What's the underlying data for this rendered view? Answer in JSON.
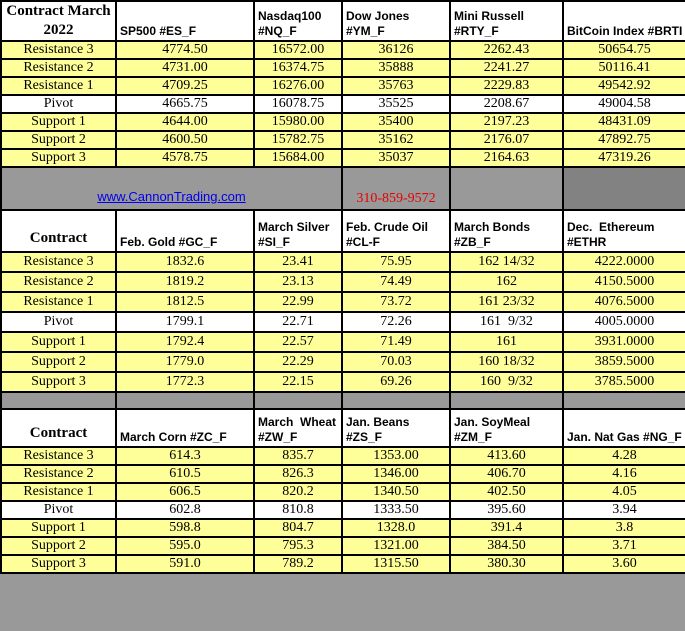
{
  "colors": {
    "cell_yellow": "#ffff99",
    "pivot_white": "#ffffff",
    "band_gray": "#999999",
    "band_gray_dark": "#828282",
    "border_black": "#000000",
    "link_blue": "#0000ee",
    "phone_red": "#e60000"
  },
  "band": {
    "link_text": "www.CannonTrading.com",
    "phone_text": "310-859-9572"
  },
  "row_labels": [
    "Resistance 3",
    "Resistance 2",
    "Resistance 1",
    "Pivot",
    "Support 1",
    "Support 2",
    "Support 3"
  ],
  "sections": [
    {
      "corner_label": "Contract March 2022",
      "columns": [
        {
          "header": "SP500 #ES_F",
          "values": [
            "4774.50",
            "4731.00",
            "4709.25",
            "4665.75",
            "4644.00",
            "4600.50",
            "4578.75"
          ]
        },
        {
          "header": "Nasdaq100\n#NQ_F",
          "values": [
            "16572.00",
            "16374.75",
            "16276.00",
            "16078.75",
            "15980.00",
            "15782.75",
            "15684.00"
          ]
        },
        {
          "header": "Dow Jones\n#YM_F",
          "values": [
            "36126",
            "35888",
            "35763",
            "35525",
            "35400",
            "35162",
            "35037"
          ]
        },
        {
          "header": "Mini Russell\n#RTY_F",
          "values": [
            "2262.43",
            "2241.27",
            "2229.83",
            "2208.67",
            "2197.23",
            "2176.07",
            "2164.63"
          ]
        },
        {
          "header": "BitCoin Index #BRTI",
          "values": [
            "50654.75",
            "50116.41",
            "49542.92",
            "49004.58",
            "48431.09",
            "47892.75",
            "47319.26"
          ]
        }
      ]
    },
    {
      "corner_label": "Contract",
      "columns": [
        {
          "header": "Feb. Gold #GC_F",
          "values": [
            "1832.6",
            "1819.2",
            "1812.5",
            "1799.1",
            "1792.4",
            "1779.0",
            "1772.3"
          ]
        },
        {
          "header": "March Silver\n#SI_F",
          "values": [
            "23.41",
            "23.13",
            "22.99",
            "22.71",
            "22.57",
            "22.29",
            "22.15"
          ]
        },
        {
          "header": "Feb. Crude Oil\n#CL-F",
          "values": [
            "75.95",
            "74.49",
            "73.72",
            "72.26",
            "71.49",
            "70.03",
            "69.26"
          ]
        },
        {
          "header": "March Bonds\n#ZB_F",
          "values": [
            "162 14/32",
            "162",
            "161 23/32",
            "161  9/32",
            "161",
            "160 18/32",
            "160  9/32"
          ]
        },
        {
          "header": "Dec.  Ethereum\n#ETHR",
          "values": [
            "4222.0000",
            "4150.5000",
            "4076.5000",
            "4005.0000",
            "3931.0000",
            "3859.5000",
            "3785.5000"
          ]
        }
      ]
    },
    {
      "corner_label": "Contract",
      "columns": [
        {
          "header": "March Corn #ZC_F",
          "values": [
            "614.3",
            "610.5",
            "606.5",
            "602.8",
            "598.8",
            "595.0",
            "591.0"
          ]
        },
        {
          "header": "March  Wheat\n#ZW_F",
          "values": [
            "835.7",
            "826.3",
            "820.2",
            "810.8",
            "804.7",
            "795.3",
            "789.2"
          ]
        },
        {
          "header": "Jan. Beans #ZS_F",
          "values": [
            "1353.00",
            "1346.00",
            "1340.50",
            "1333.50",
            "1328.0",
            "1321.00",
            "1315.50"
          ]
        },
        {
          "header": "Jan. SoyMeal\n#ZM_F",
          "values": [
            "413.60",
            "406.70",
            "402.50",
            "395.60",
            "391.4",
            "384.50",
            "380.30"
          ]
        },
        {
          "header": "Jan. Nat Gas #NG_F",
          "values": [
            "4.28",
            "4.16",
            "4.05",
            "3.94",
            "3.8",
            "3.71",
            "3.60"
          ]
        }
      ]
    }
  ]
}
